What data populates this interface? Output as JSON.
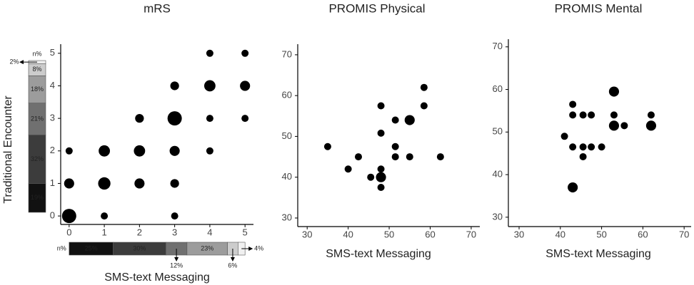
{
  "chart_data": [
    {
      "type": "scatter",
      "title": "mRS",
      "x_label": "SMS-text Messaging",
      "y_label": "Traditional Encounter",
      "xlim": [
        -0.24,
        5.24
      ],
      "ylim": [
        -0.26,
        5.28
      ],
      "xticks": [
        0,
        1,
        2,
        3,
        4,
        5
      ],
      "yticks": [
        0,
        1,
        2,
        3,
        4,
        5
      ],
      "color": "#000000",
      "x": [
        0,
        1,
        3,
        0,
        1,
        2,
        3,
        0,
        1,
        2,
        3,
        4,
        2,
        3,
        4,
        5,
        3,
        4,
        5,
        4,
        5
      ],
      "values": [
        0,
        0,
        0,
        1,
        1,
        1,
        1,
        2,
        2,
        2,
        2,
        2,
        3,
        3,
        3,
        3,
        4,
        4,
        4,
        5,
        5
      ],
      "sizes": [
        4,
        1,
        1,
        2,
        3,
        2,
        1.5,
        1,
        2.5,
        2.5,
        2,
        1,
        1.5,
        4,
        1,
        1,
        1.5,
        2.5,
        2,
        1,
        1
      ],
      "margin_colors": [
        "#111111",
        "#3c3c3c",
        "#707070",
        "#9c9c9c",
        "#cccccc",
        "#f0f0f0"
      ],
      "y_margin": {
        "label": "n%",
        "values": [
          19,
          32,
          21,
          18,
          8,
          2
        ],
        "value_labels": [
          "19%",
          "32%",
          "21%",
          "18%",
          "8%",
          "2%"
        ]
      },
      "x_margin": {
        "label": "n%",
        "values": [
          25,
          30,
          12,
          23,
          6,
          4
        ],
        "value_labels": [
          "25%",
          "30%",
          "12%",
          "23%",
          "6%",
          "4%"
        ]
      }
    },
    {
      "type": "scatter",
      "title": "PROMIS Physical",
      "x_label": "SMS-text Messaging",
      "xlim": [
        27.7,
        72.1
      ],
      "ylim": [
        27.9,
        72.6
      ],
      "xticks": [
        30,
        40,
        50,
        60,
        70
      ],
      "yticks": [
        30,
        40,
        50,
        60,
        70
      ],
      "color": "#000000",
      "x": [
        35,
        40,
        42.5,
        45.5,
        48,
        48,
        48,
        48,
        48,
        51.5,
        51.5,
        51.5,
        55,
        55,
        58.5,
        58.5,
        62.5
      ],
      "values": [
        47.5,
        42,
        45,
        40,
        57.5,
        50.8,
        42,
        40,
        37.5,
        54,
        47.5,
        45,
        54,
        45,
        62,
        57.5,
        45
      ],
      "sizes": [
        1,
        1,
        1,
        1,
        1,
        1,
        1,
        2,
        1,
        1,
        1,
        1,
        2,
        1,
        1,
        1,
        1
      ]
    },
    {
      "type": "scatter",
      "title": "PROMIS Mental",
      "x_label": "SMS-text Messaging",
      "xlim": [
        27.4,
        71.7
      ],
      "ylim": [
        27.8,
        71.8
      ],
      "xticks": [
        30,
        40,
        50,
        60,
        70
      ],
      "yticks": [
        30,
        40,
        50,
        60,
        70
      ],
      "color": "#000000",
      "x": [
        41,
        43,
        43,
        43,
        43,
        45.5,
        45.5,
        45.5,
        47.5,
        47.5,
        50,
        53,
        53,
        53,
        55.5,
        62,
        62
      ],
      "values": [
        49,
        56.5,
        54,
        46.5,
        37,
        54,
        46.5,
        44.2,
        54,
        46.5,
        46.5,
        59.5,
        54,
        51.5,
        51.5,
        54,
        51.5
      ],
      "sizes": [
        1,
        1,
        1,
        1,
        2,
        1,
        1,
        1,
        1,
        1,
        1,
        2,
        1,
        2,
        1,
        1,
        2
      ]
    }
  ]
}
